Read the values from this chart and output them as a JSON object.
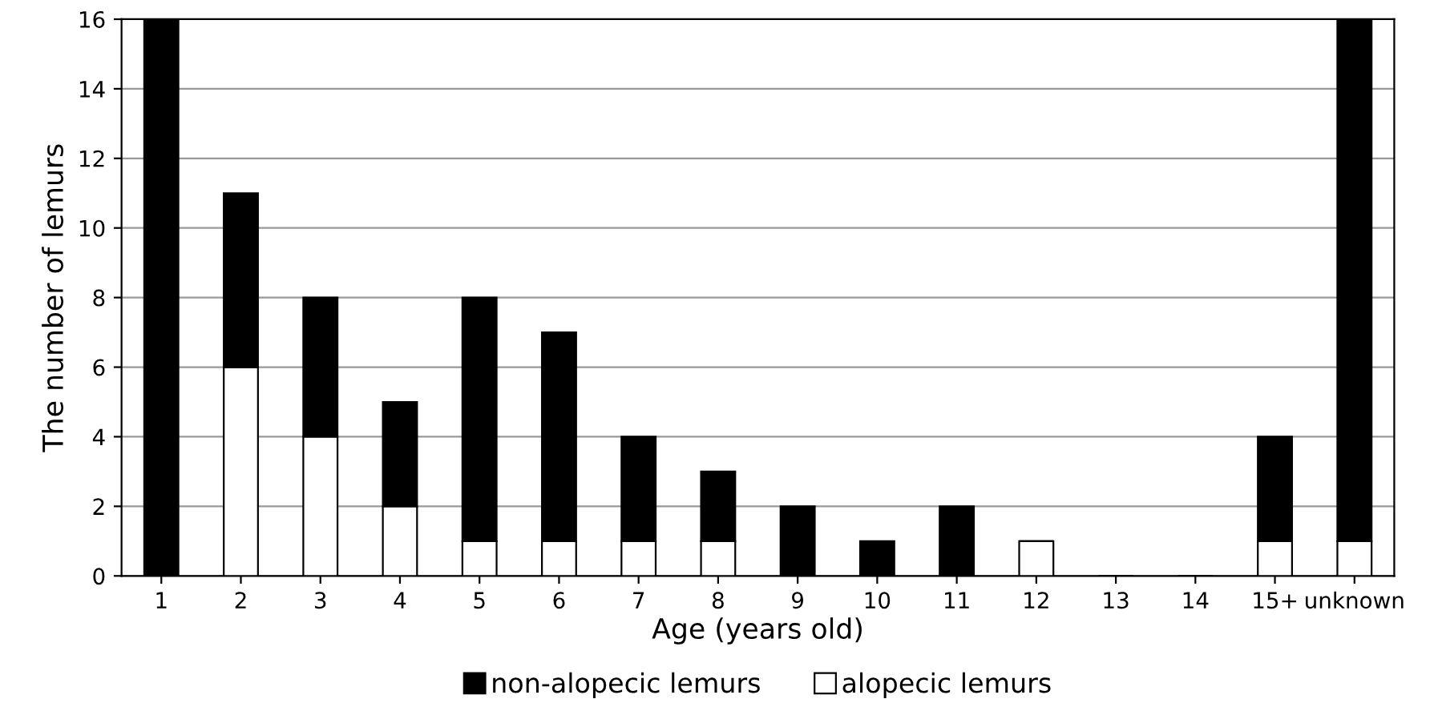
{
  "chart_data": {
    "type": "bar",
    "stacked": true,
    "xlabel": "Age (years old)",
    "ylabel": "The number of lemurs",
    "categories": [
      "1",
      "2",
      "3",
      "4",
      "5",
      "6",
      "7",
      "8",
      "9",
      "10",
      "11",
      "12",
      "13",
      "14",
      "15+",
      "unknown"
    ],
    "series": [
      {
        "name": "alopecic lemurs",
        "color": "#ffffff",
        "values": [
          0,
          6,
          4,
          2,
          1,
          1,
          1,
          1,
          0,
          0,
          0,
          1,
          0,
          0,
          1,
          1
        ]
      },
      {
        "name": "non-alopecic lemurs",
        "color": "#000000",
        "values": [
          16,
          5,
          4,
          3,
          7,
          6,
          3,
          2,
          2,
          1,
          2,
          0,
          0,
          0,
          3,
          15
        ]
      }
    ],
    "ylim": [
      0,
      16
    ],
    "yticks": [
      0,
      2,
      4,
      6,
      8,
      10,
      12,
      14,
      16
    ],
    "grid": "y",
    "legend": "bottom"
  }
}
